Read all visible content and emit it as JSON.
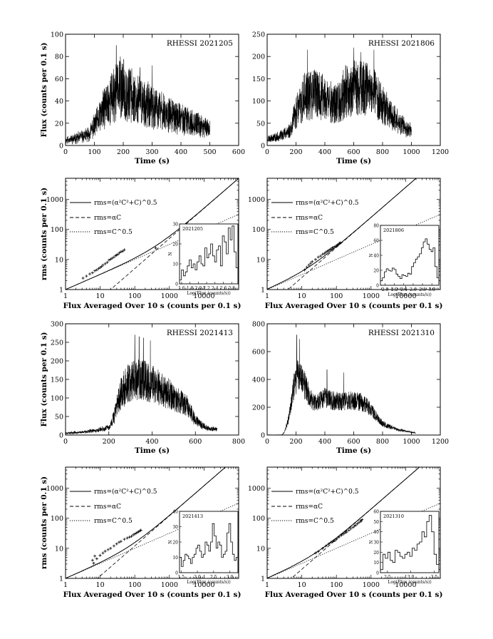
{
  "figure": {
    "ylabel_flux": "Flux (counts per 0.1 s)",
    "xlabel_time": "Time (s)",
    "ylabel_rms": "rms (counts per 0.1 s)",
    "xlabel_avg": "Flux Averaged Over 10 s (counts per 0.1 s)",
    "legend": {
      "model": "rms=(α²C²+C)^0.5",
      "linear": "rms=αC",
      "poisson": "rms=C^0.5"
    },
    "inset_xlabel": "Log(Flux (counts/s))",
    "inset_ylabel": "N"
  },
  "chart_data": [
    {
      "type": "line",
      "panel": "a",
      "title": "RHESSI 2021205",
      "xlabel": "Time (s)",
      "ylabel": "Flux (counts per 0.1 s)",
      "xlim": [
        0,
        600
      ],
      "ylim": [
        0,
        100
      ],
      "xticks": [
        0,
        100,
        200,
        300,
        400,
        500,
        600
      ],
      "yticks": [
        0,
        20,
        40,
        60,
        80,
        100
      ],
      "duration": 500,
      "seed": 11,
      "envelope_t": [
        0,
        30,
        80,
        110,
        140,
        175,
        200,
        230,
        270,
        310,
        360,
        400,
        450,
        500
      ],
      "envelope_v": [
        5,
        6,
        10,
        22,
        36,
        48,
        50,
        44,
        38,
        33,
        28,
        24,
        19,
        15
      ],
      "noise_scale": 0.55,
      "spikes": [
        [
          176,
          90
        ],
        [
          190,
          80
        ],
        [
          258,
          70
        ],
        [
          300,
          72
        ]
      ]
    },
    {
      "type": "line",
      "panel": "b",
      "title": "RHESSI 2021806",
      "xlabel": "Time (s)",
      "ylabel": "",
      "xlim": [
        0,
        1200
      ],
      "ylim": [
        0,
        250
      ],
      "xticks": [
        0,
        200,
        400,
        600,
        800,
        1000,
        1200
      ],
      "yticks": [
        0,
        50,
        100,
        150,
        200,
        250
      ],
      "duration": 1000,
      "seed": 23,
      "envelope_t": [
        0,
        80,
        160,
        200,
        260,
        330,
        420,
        480,
        540,
        600,
        660,
        720,
        780,
        830,
        900,
        960,
        1000
      ],
      "envelope_v": [
        15,
        20,
        35,
        75,
        110,
        115,
        105,
        90,
        120,
        128,
        130,
        120,
        105,
        80,
        55,
        40,
        35
      ],
      "noise_scale": 0.5,
      "spikes": [
        [
          280,
          215
        ],
        [
          600,
          220
        ],
        [
          650,
          210
        ],
        [
          740,
          215
        ]
      ]
    },
    {
      "type": "scatter",
      "panel": "c",
      "scale": "log-log",
      "xlabel": "Flux Averaged Over 10 s (counts per 0.1 s)",
      "ylabel": "rms (counts per 0.1 s)",
      "xlim": [
        1,
        100000
      ],
      "ylim": [
        1,
        5000
      ],
      "xticks": [
        1,
        10,
        100,
        1000,
        10000
      ],
      "xtick_labels": [
        "1",
        "10",
        "100",
        "1000",
        "10000"
      ],
      "yticks": [
        1,
        10,
        100,
        1000
      ],
      "ytick_labels": [
        "1",
        "10",
        "100",
        "1000"
      ],
      "alpha": 0.05,
      "seed": 31,
      "points_x": [
        3.2,
        4,
        5,
        6,
        7,
        8,
        9,
        10,
        11,
        12,
        14,
        16,
        18,
        20,
        22,
        25,
        28,
        30,
        33,
        36,
        40,
        45,
        50,
        400
      ],
      "points_y": [
        2.4,
        2.8,
        3.3,
        3.6,
        4.2,
        4.5,
        5.0,
        5.4,
        5.8,
        6.5,
        7.2,
        8.0,
        9.5,
        10.2,
        11,
        12,
        13.5,
        14,
        15,
        16.5,
        18,
        19,
        21,
        24
      ],
      "inset": {
        "label": "2021205",
        "xlim": [
          1.55,
          2.95
        ],
        "ylim": [
          0,
          30
        ],
        "xticks": [
          1.6,
          1.8,
          2.0,
          2.2,
          2.4,
          2.6,
          2.8
        ],
        "xtick_labels": [
          "1.6",
          "1.8",
          "2.0",
          "2.2",
          "2.4",
          "2.6",
          "2.8"
        ],
        "yticks": [
          0,
          10,
          20,
          30
        ],
        "ytick_labels": [
          "0",
          "10",
          "20",
          "30"
        ],
        "counts": [
          2,
          7,
          4,
          6,
          9,
          12,
          8,
          10,
          7,
          11,
          14,
          10,
          9,
          18,
          13,
          15,
          20,
          14,
          11,
          17,
          19,
          9,
          24,
          21,
          15,
          28,
          22,
          29,
          16,
          8
        ]
      }
    },
    {
      "type": "scatter",
      "panel": "d",
      "scale": "log-log",
      "xlabel": "Flux Averaged Over 10 s (counts per 0.1 s)",
      "ylabel": "",
      "xlim": [
        1,
        100000
      ],
      "ylim": [
        1,
        5000
      ],
      "xticks": [
        1,
        10,
        100,
        1000,
        10000
      ],
      "xtick_labels": [
        "1",
        "10",
        "100",
        "1000",
        "10000"
      ],
      "yticks": [
        1,
        10,
        100,
        1000
      ],
      "ytick_labels": [
        "1",
        "10",
        "100",
        "1000"
      ],
      "alpha": 0.25,
      "seed": 47,
      "points_x": [
        12,
        14,
        16,
        18,
        20,
        25,
        30,
        35,
        40,
        45,
        50,
        55,
        60,
        65,
        70,
        75,
        80,
        90,
        100,
        105,
        110,
        120,
        125,
        130
      ],
      "points_y": [
        4.5,
        5.5,
        6.5,
        7.5,
        8.5,
        10,
        12,
        13,
        15,
        16,
        17.5,
        19,
        20,
        21.5,
        22,
        24,
        25,
        27,
        28,
        30,
        31,
        33,
        35,
        36
      ],
      "inset": {
        "label": "2021806",
        "xlim": [
          1.9,
          3.15
        ],
        "ylim": [
          0,
          80
        ],
        "xticks": [
          2.0,
          2.2,
          2.4,
          2.6,
          2.8,
          3.0
        ],
        "xtick_labels": [
          "2.0",
          "2.2",
          "2.4",
          "2.6",
          "2.8",
          "3.0"
        ],
        "yticks": [
          0,
          20,
          40,
          60,
          80
        ],
        "ytick_labels": [
          "0",
          "20",
          "40",
          "60",
          "80"
        ],
        "counts": [
          6,
          10,
          18,
          22,
          20,
          19,
          23,
          21,
          15,
          12,
          9,
          14,
          13,
          12,
          16,
          15,
          25,
          30,
          35,
          38,
          42,
          50,
          58,
          62,
          55,
          48,
          45,
          50,
          25,
          10
        ]
      }
    },
    {
      "type": "line",
      "panel": "e",
      "title": "RHESSI 2021413",
      "xlabel": "Time (s)",
      "ylabel": "Flux (counts per 0.1 s)",
      "xlim": [
        0,
        800
      ],
      "ylim": [
        0,
        300
      ],
      "xticks": [
        0,
        200,
        400,
        600,
        800
      ],
      "yticks": [
        0,
        50,
        100,
        150,
        200,
        250,
        300
      ],
      "duration": 700,
      "seed": 59,
      "envelope_t": [
        0,
        80,
        150,
        200,
        225,
        250,
        280,
        320,
        360,
        400,
        450,
        500,
        560,
        600,
        650,
        700
      ],
      "envelope_v": [
        5,
        8,
        14,
        20,
        50,
        105,
        135,
        150,
        148,
        140,
        122,
        100,
        80,
        40,
        20,
        15
      ],
      "noise_scale": 0.38,
      "spikes": [
        [
          320,
          270
        ],
        [
          340,
          265
        ],
        [
          360,
          262
        ],
        [
          392,
          255
        ]
      ]
    },
    {
      "type": "line",
      "panel": "f",
      "title": "RHESSI 2021310",
      "xlabel": "Time (s)",
      "ylabel": "",
      "xlim": [
        0,
        1200
      ],
      "ylim": [
        0,
        800
      ],
      "xticks": [
        0,
        200,
        400,
        600,
        800,
        1000,
        1200
      ],
      "yticks": [
        0,
        200,
        400,
        600,
        800
      ],
      "duration": 1030,
      "seed": 71,
      "envelope_t": [
        100,
        120,
        150,
        180,
        210,
        250,
        300,
        340,
        400,
        450,
        500,
        550,
        600,
        650,
        700,
        760,
        800,
        900,
        1000,
        1030
      ],
      "envelope_v": [
        0,
        20,
        120,
        320,
        440,
        380,
        260,
        230,
        270,
        250,
        240,
        250,
        245,
        235,
        200,
        130,
        80,
        40,
        20,
        15
      ],
      "noise_scale": 0.28,
      "spikes": [
        [
          205,
          720
        ],
        [
          225,
          690
        ],
        [
          415,
          470
        ],
        [
          530,
          450
        ]
      ]
    },
    {
      "type": "scatter",
      "panel": "g",
      "scale": "log-log",
      "xlabel": "Flux Averaged Over 10 s (counts per 0.1 s)",
      "ylabel": "rms (counts per 0.1 s)",
      "xlim": [
        1,
        100000
      ],
      "ylim": [
        1,
        5000
      ],
      "xticks": [
        1,
        10,
        100,
        1000,
        10000
      ],
      "xtick_labels": [
        "1",
        "10",
        "100",
        "1000",
        "10000"
      ],
      "yticks": [
        1,
        10,
        100,
        1000
      ],
      "ytick_labels": [
        "1",
        "10",
        "100",
        "1000"
      ],
      "alpha": 0.12,
      "seed": 83,
      "points_x": [
        6,
        6.5,
        7,
        8,
        10,
        12,
        14,
        17,
        20,
        25,
        30,
        35,
        40,
        50,
        60,
        70,
        80,
        90,
        100,
        110,
        120,
        130,
        140,
        150
      ],
      "points_y": [
        4,
        3.2,
        5.5,
        4.5,
        5.8,
        7,
        8,
        9,
        10,
        12,
        14,
        16,
        17,
        20,
        22,
        23.5,
        25,
        28,
        30,
        32,
        34,
        36,
        38,
        40
      ],
      "inset": {
        "label": "2021413",
        "xlim": [
          1.45,
          3.25
        ],
        "ylim": [
          0,
          40
        ],
        "xticks": [
          1.5,
          2.0,
          2.5,
          3.0
        ],
        "xtick_labels": [
          "1.5",
          "2.0",
          "2.5",
          "3.0"
        ],
        "yticks": [
          0,
          10,
          20,
          30,
          40
        ],
        "ytick_labels": [
          "0",
          "10",
          "20",
          "30",
          "40"
        ],
        "counts": [
          10,
          4,
          8,
          12,
          11,
          9,
          6,
          10,
          12,
          16,
          18,
          14,
          10,
          12,
          20,
          18,
          14,
          20,
          32,
          24,
          16,
          20,
          18,
          10,
          12,
          14,
          26,
          32,
          20,
          12,
          8,
          10
        ]
      }
    },
    {
      "type": "scatter",
      "panel": "h",
      "scale": "log-log",
      "xlabel": "Flux Averaged Over 10 s (counts per 0.1 s)",
      "ylabel": "",
      "xlim": [
        1,
        100000
      ],
      "ylim": [
        1,
        5000
      ],
      "xticks": [
        1,
        10,
        100,
        1000,
        10000
      ],
      "xtick_labels": [
        "1",
        "10",
        "100",
        "1000",
        "10000"
      ],
      "yticks": [
        1,
        10,
        100,
        1000
      ],
      "ytick_labels": [
        "1",
        "10",
        "100",
        "1000"
      ],
      "alpha": 0.2,
      "seed": 97,
      "points_x": [
        25,
        30,
        40,
        50,
        60,
        70,
        80,
        90,
        100,
        120,
        140,
        160,
        180,
        200,
        230,
        260,
        300,
        330,
        360,
        400,
        450,
        500,
        520,
        550
      ],
      "points_y": [
        7,
        7.8,
        10,
        12,
        14,
        16,
        17,
        18,
        20,
        24,
        27,
        30,
        33,
        35,
        40,
        45,
        50,
        55,
        58,
        65,
        72,
        80,
        82,
        90
      ],
      "inset": {
        "label": "2021310",
        "xlim": [
          2.35,
          3.6
        ],
        "ylim": [
          0,
          60
        ],
        "xticks": [
          2.5,
          3.0,
          3.5
        ],
        "xtick_labels": [
          "2.5",
          "3.0",
          "3.5"
        ],
        "yticks": [
          0,
          10,
          20,
          30,
          40,
          50,
          60
        ],
        "ytick_labels": [
          "0",
          "10",
          "20",
          "30",
          "40",
          "50",
          "60"
        ],
        "counts": [
          3,
          18,
          14,
          20,
          12,
          10,
          22,
          20,
          16,
          14,
          18,
          20,
          16,
          24,
          22,
          28,
          30,
          40,
          35,
          50,
          56,
          40,
          18,
          8
        ]
      }
    }
  ]
}
